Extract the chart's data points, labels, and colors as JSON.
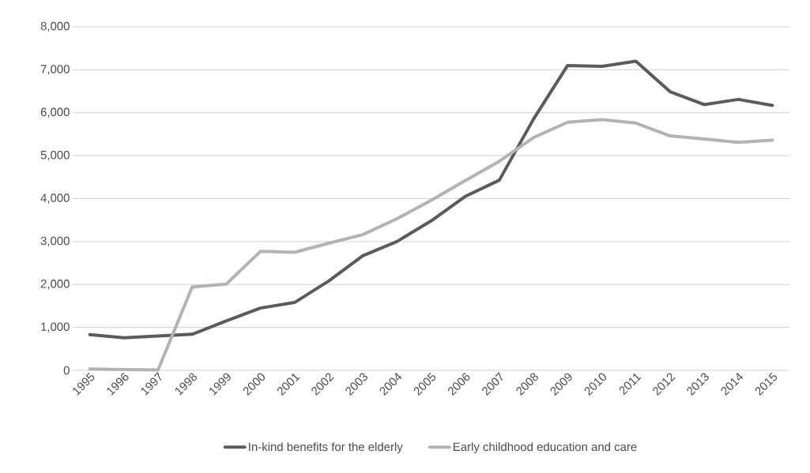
{
  "chart_data": {
    "type": "line",
    "categories": [
      "1995",
      "1996",
      "1997",
      "1998",
      "1999",
      "2000",
      "2001",
      "2002",
      "2003",
      "2004",
      "2005",
      "2006",
      "2007",
      "2008",
      "2009",
      "2010",
      "2011",
      "2012",
      "2013",
      "2014",
      "2015"
    ],
    "series": [
      {
        "name": "In-kind benefits for the elderly",
        "color": "#5b5b5b",
        "values": [
          830,
          760,
          800,
          840,
          1150,
          1450,
          1580,
          2080,
          2670,
          3000,
          3480,
          4050,
          4430,
          5850,
          7100,
          7080,
          7200,
          6490,
          6190,
          6310,
          6170
        ]
      },
      {
        "name": "Early childhood education and care",
        "color": "#b3b3b3",
        "values": [
          30,
          20,
          10,
          1940,
          2010,
          2770,
          2750,
          2960,
          3160,
          3530,
          3960,
          4420,
          4870,
          5420,
          5780,
          5840,
          5760,
          5460,
          5390,
          5310,
          5360
        ]
      }
    ],
    "ylim": [
      0,
      8000
    ],
    "yticks": [
      {
        "value": 0,
        "label": "0"
      },
      {
        "value": 1000,
        "label": "1,000"
      },
      {
        "value": 2000,
        "label": "2,000"
      },
      {
        "value": 3000,
        "label": "3,000"
      },
      {
        "value": 4000,
        "label": "4,000"
      },
      {
        "value": 5000,
        "label": "5,000"
      },
      {
        "value": 6000,
        "label": "6,000"
      },
      {
        "value": 7000,
        "label": "7,000"
      },
      {
        "value": 8000,
        "label": "8,000"
      }
    ],
    "grid": "y",
    "legend": "bottom",
    "marker": "none",
    "line_style": "solid"
  }
}
